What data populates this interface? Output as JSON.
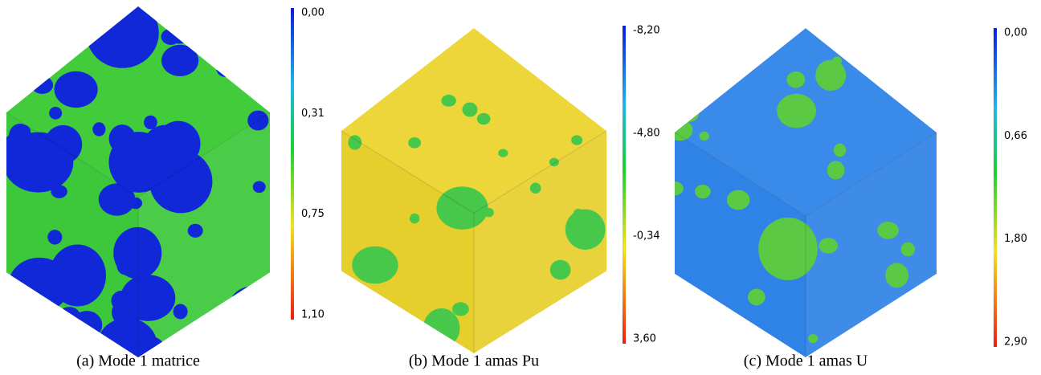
{
  "panels": [
    {
      "caption": "(a)  Mode 1 matrice",
      "colorbar_labels": [
        "0,00",
        "0,31",
        "0,75",
        "1,10"
      ]
    },
    {
      "caption": "(b)  Mode 1 amas Pu",
      "colorbar_labels": [
        "-8,20",
        "-4,80",
        "-0,34",
        "3,60"
      ]
    },
    {
      "caption": "(c)  Mode 1 amas U",
      "colorbar_labels": [
        "0,00",
        "0,66",
        "1,80",
        "2,90"
      ]
    }
  ]
}
